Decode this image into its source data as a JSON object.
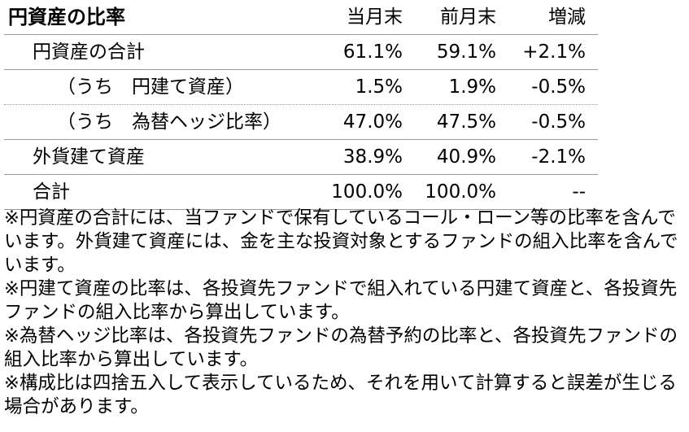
{
  "title": "円資産の比率",
  "table": {
    "headers": [
      "当月末",
      "前月末",
      "増減"
    ],
    "rows": [
      [
        "円資産の合計",
        "61.1%",
        "59.1%",
        "+2.1%"
      ],
      [
        "（うち　円建て資産）",
        "1.5%",
        "1.9%",
        "-0.5%"
      ],
      [
        "（うち　為替ヘッジ比率）",
        "47.0%",
        "47.5%",
        "-0.5%"
      ],
      [
        "外貨建て資産",
        "38.9%",
        "40.9%",
        "-2.1%"
      ],
      [
        "合計",
        "100.0%",
        "100.0%",
        "--"
      ]
    ]
  },
  "notes": [
    "※円資産の合計には、当ファンドで保有しているコール・ローン等の比率を含んでいます。外貨建て資産には、金を主な投資対象とするファンドの組入比率を含んでいます。",
    "※円建て資産の比率は、各投資先ファンドで組入れている円建て資産と、各投資先ファンドの組入比率から算出しています。",
    "※為替ヘッジ比率は、各投資先ファンドの為替予約の比率と、各投資先ファンドの組入比率から算出しています。",
    "※構成比は四捨五入して表示しているため、それを用いて計算すると誤差が生じる場合があります。"
  ]
}
